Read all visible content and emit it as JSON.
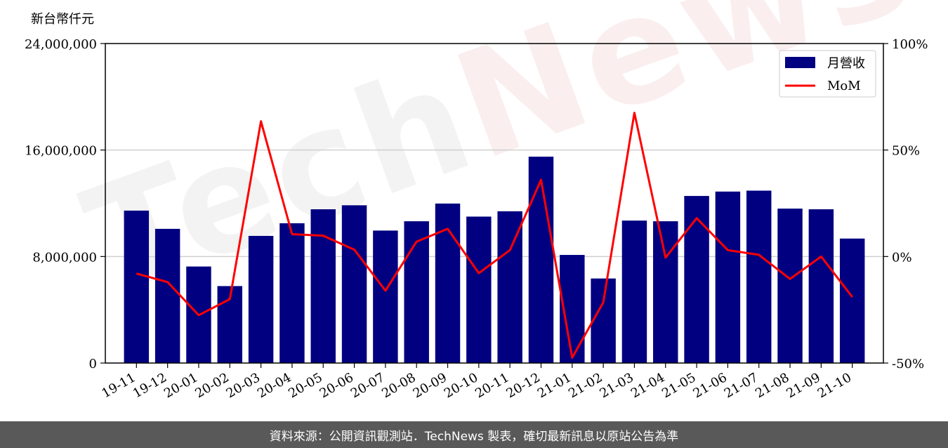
{
  "chart_data": {
    "type": "bar",
    "unit_label": "新台幣仟元",
    "categories": [
      "19-11",
      "19-12",
      "20-01",
      "20-02",
      "20-03",
      "20-04",
      "20-05",
      "20-06",
      "20-07",
      "20-08",
      "20-09",
      "20-10",
      "20-11",
      "20-12",
      "21-01",
      "21-02",
      "21-03",
      "21-04",
      "21-05",
      "21-06",
      "21-07",
      "21-08",
      "21-09",
      "21-10"
    ],
    "series": [
      {
        "name": "月營收",
        "kind": "bar",
        "axis": "left",
        "color": "#000080",
        "values": [
          11450000,
          10080000,
          7250000,
          5780000,
          9550000,
          10500000,
          11550000,
          11850000,
          9950000,
          10650000,
          11980000,
          11000000,
          11400000,
          15500000,
          8120000,
          6350000,
          10700000,
          10650000,
          12550000,
          12880000,
          12950000,
          11600000,
          11550000,
          9350000
        ]
      },
      {
        "name": "MoM",
        "kind": "line",
        "axis": "right",
        "color": "#ff0000",
        "values": [
          -8,
          -12,
          -27.5,
          -20,
          63.5,
          10.5,
          9.8,
          3.2,
          -16,
          7,
          13,
          -7.8,
          3,
          36,
          -47.5,
          -21.5,
          67.5,
          -0.5,
          18,
          3,
          0.8,
          -10.5,
          0,
          -19
        ]
      }
    ],
    "y_left": {
      "ylim": [
        0,
        24000000
      ],
      "ticks": [
        0,
        8000000,
        16000000,
        24000000
      ],
      "tick_labels": [
        "0",
        "8,000,000",
        "16,000,000",
        "24,000,000"
      ]
    },
    "y_right": {
      "ylim": [
        -50,
        100
      ],
      "ticks": [
        -50,
        0,
        50,
        100
      ],
      "tick_labels": [
        "-50%",
        "0%",
        "50%",
        "100%"
      ]
    },
    "grid": true,
    "legend": "top-right",
    "watermark": "TechNews"
  },
  "footer": {
    "text": "資料來源：公開資訊觀測站．TechNews 製表，確切最新訊息以原站公告為準"
  }
}
